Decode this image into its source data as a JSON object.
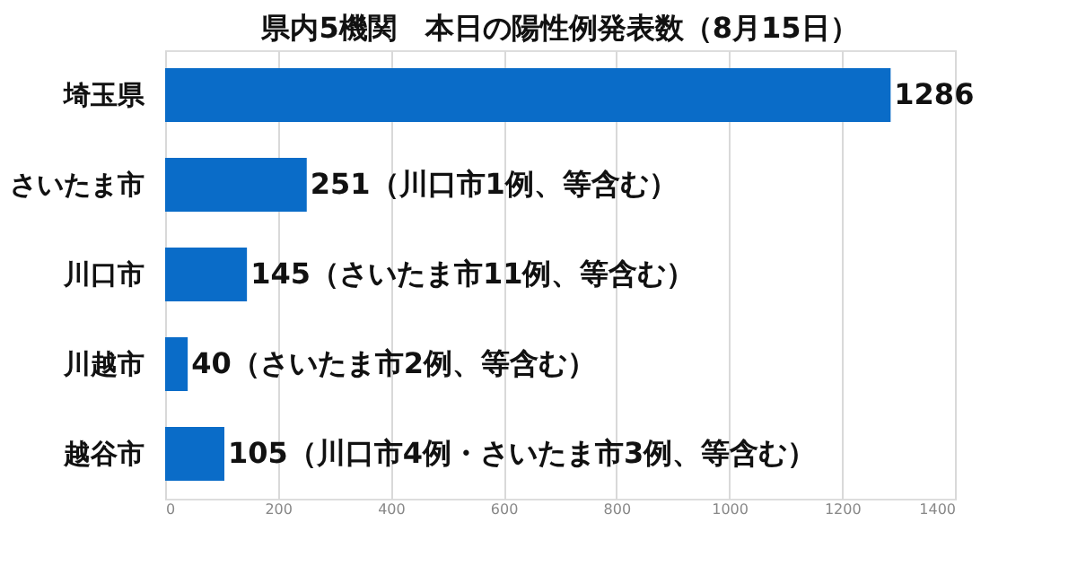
{
  "chart_data": {
    "type": "bar",
    "orientation": "horizontal",
    "title": "県内5機関　本日の陽性例発表数（8月15日）",
    "categories": [
      "埼玉県",
      "さいたま市",
      "川口市",
      "川越市",
      "越谷市"
    ],
    "values": [
      1286,
      251,
      145,
      40,
      105
    ],
    "color": "#0a6cc8",
    "value_labels": [
      "1286",
      "251（川口市1例、等含む）",
      "145（さいたま市11例、等含む）",
      "40（さいたま市2例、等含む）",
      "105（川口市4例・さいたま市3例、等含む）"
    ],
    "xlim": [
      0,
      1400
    ],
    "xticks": [
      0,
      200,
      400,
      600,
      800,
      1000,
      1200,
      1400
    ],
    "grid": "x"
  }
}
